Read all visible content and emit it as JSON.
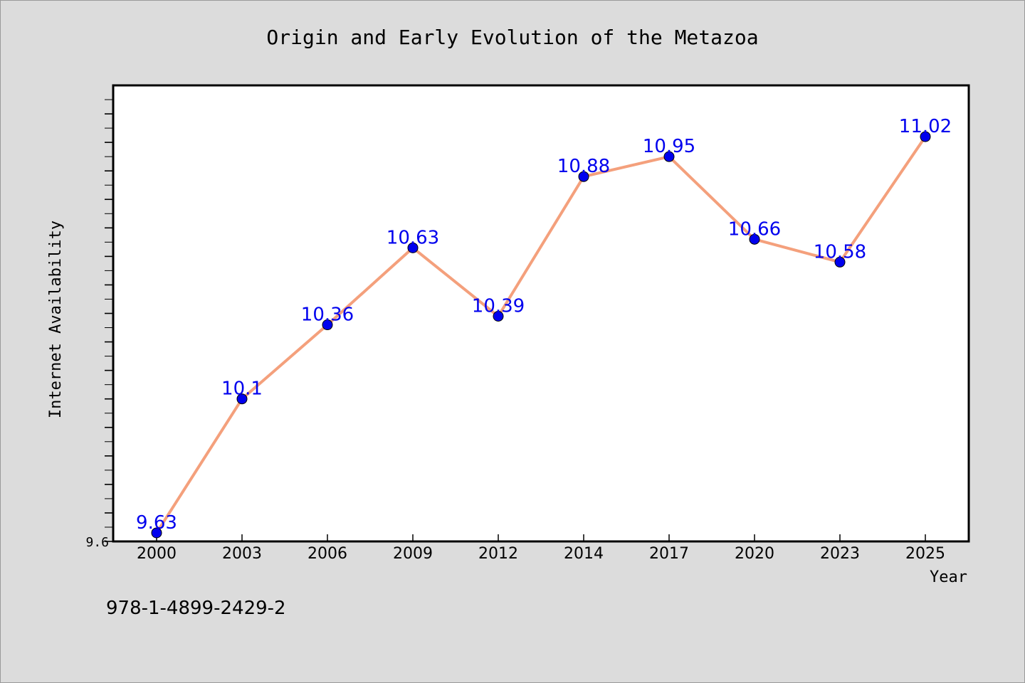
{
  "chart_data": {
    "type": "line",
    "title": "Origin and Early Evolution of the Metazoa",
    "xlabel": "Year",
    "ylabel": "Internet Availability",
    "categories": [
      "2000",
      "2003",
      "2006",
      "2009",
      "2012",
      "2014",
      "2017",
      "2020",
      "2023",
      "2025"
    ],
    "series": [
      {
        "values": [
          9.63,
          10.1,
          10.36,
          10.63,
          10.39,
          10.88,
          10.95,
          10.66,
          10.58,
          11.02
        ],
        "labels": [
          "9.63",
          "10.1",
          "10.36",
          "10.63",
          "10.39",
          "10.88",
          "10.95",
          "10.66",
          "10.58",
          "11.02"
        ]
      }
    ],
    "ylim": [
      9.6,
      11.2
    ],
    "ytick_labels": [
      "9.6"
    ],
    "grid": false,
    "colors": {
      "line": "#f4a07c",
      "marker": "#0000ee",
      "data_label": "#0000ee"
    }
  },
  "footer": {
    "isbn": "978-1-4899-2429-2"
  }
}
